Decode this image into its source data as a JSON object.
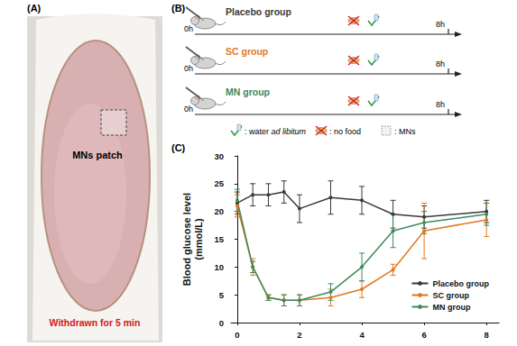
{
  "panel_a": {
    "label": "(A)",
    "patch_label": "MNs patch",
    "caption": "Withdrawn for 5 min"
  },
  "panel_b": {
    "label": "(B)",
    "start": "0h",
    "end": "8h",
    "key": [
      {
        "text": ": water ",
        "italic": "ad libitum"
      },
      {
        "text": ": no food"
      },
      {
        "text": ": MNs"
      }
    ]
  },
  "panel_c": {
    "label": "(C)"
  },
  "chart_data": {
    "type": "line",
    "ylabel": "Blood glucose level\n(mmol/L)",
    "x": [
      0,
      0.5,
      1,
      1.5,
      2,
      3,
      4,
      5,
      6,
      8
    ],
    "series": [
      {
        "name": "Placebo group",
        "color": "#3a3a3a",
        "values": [
          21.5,
          23,
          23,
          23.5,
          20.5,
          22.5,
          22,
          19.5,
          19,
          20
        ],
        "errors": [
          2,
          2,
          2,
          2,
          2.5,
          3,
          2.5,
          2.5,
          2,
          2
        ]
      },
      {
        "name": "SC group",
        "color": "#e0781e",
        "values": [
          21,
          10,
          4.5,
          4,
          4,
          4.5,
          6,
          9.5,
          16.5,
          18.5
        ],
        "errors": [
          2,
          1.5,
          0.5,
          1,
          1,
          1.5,
          1.5,
          1,
          5,
          3
        ]
      },
      {
        "name": "MN group",
        "color": "#3c8a5c",
        "values": [
          22,
          10,
          4.5,
          4,
          4,
          5.5,
          10,
          16.5,
          18,
          19.5
        ],
        "errors": [
          2,
          1,
          0.5,
          1,
          1,
          1.5,
          2.5,
          3,
          2,
          2
        ]
      }
    ],
    "xlim": [
      -0.2,
      8.4
    ],
    "xticks": [
      0,
      2,
      4,
      6,
      8
    ],
    "ylim": [
      0,
      30
    ],
    "yticks": [
      0,
      5,
      10,
      15,
      20,
      25,
      30
    ],
    "legend": "lower right",
    "marker": "circle",
    "grid": false
  }
}
